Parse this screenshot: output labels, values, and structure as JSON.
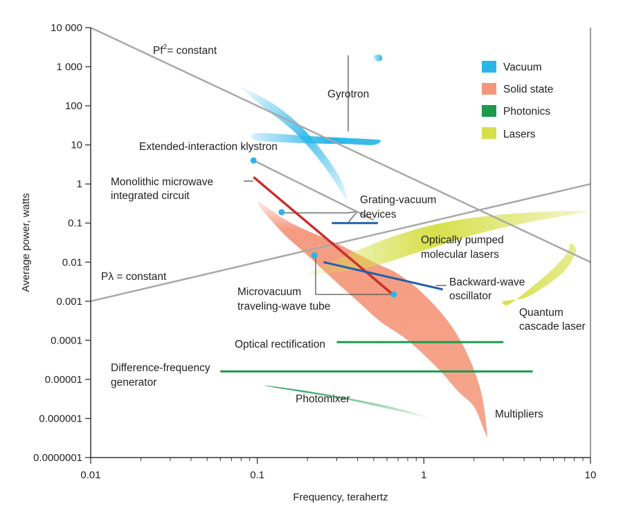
{
  "chart_data": {
    "type": "scatter",
    "title": "",
    "xlabel": "Frequency, terahertz",
    "ylabel": "Average power, watts",
    "xscale": "log",
    "yscale": "log",
    "xlim": [
      0.01,
      10
    ],
    "ylim": [
      1e-07,
      10000
    ],
    "x_ticks": [
      {
        "value": 0.01,
        "label": "0.01"
      },
      {
        "value": 0.1,
        "label": "0.1"
      },
      {
        "value": 1,
        "label": "1"
      },
      {
        "value": 10,
        "label": "10"
      }
    ],
    "y_ticks": [
      {
        "value": 10000,
        "label": "10 000"
      },
      {
        "value": 1000,
        "label": "1 000"
      },
      {
        "value": 100,
        "label": "100"
      },
      {
        "value": 10,
        "label": "10"
      },
      {
        "value": 1,
        "label": "1"
      },
      {
        "value": 0.1,
        "label": "0.1"
      },
      {
        "value": 0.01,
        "label": "0.01"
      },
      {
        "value": 0.001,
        "label": "0.001"
      },
      {
        "value": 0.0001,
        "label": "0.0001"
      },
      {
        "value": 1e-05,
        "label": "0.00001"
      },
      {
        "value": 1e-06,
        "label": "0.000001"
      },
      {
        "value": 1e-07,
        "label": "0.0000001"
      }
    ],
    "legend": {
      "placement": "top-right",
      "items": [
        {
          "label": "Vacuum",
          "color": "#29b6e8"
        },
        {
          "label": "Solid state",
          "color": "#f4967a"
        },
        {
          "label": "Photonics",
          "color": "#1a9a4a"
        },
        {
          "label": "Lasers",
          "color": "#d6e04a"
        }
      ]
    },
    "reference_lines": [
      {
        "name": "pf2",
        "label_main": "Pf",
        "label_sup": "2",
        "label_rest": "= constant",
        "points": [
          [
            0.01,
            10000
          ],
          [
            10,
            0.01
          ]
        ],
        "color": "#a8a8a8"
      },
      {
        "name": "plambda",
        "label": "Pλ = constant",
        "points": [
          [
            0.01,
            0.001
          ],
          [
            10,
            1
          ]
        ],
        "color": "#a8a8a8"
      }
    ],
    "regions": [
      {
        "name": "solid-state",
        "category": "Solid state",
        "color": "#f4967a",
        "points": [
          [
            0.1,
            0.35
          ],
          [
            0.16,
            0.1
          ],
          [
            0.3,
            0.03
          ],
          [
            0.5,
            0.01
          ],
          [
            0.7,
            0.005
          ],
          [
            1,
            0.0015
          ],
          [
            1.4,
            0.0003
          ],
          [
            1.8,
            5e-05
          ],
          [
            2.2,
            5e-06
          ],
          [
            2.4,
            4e-07
          ],
          [
            2.3,
            5e-07
          ],
          [
            2.0,
            2e-06
          ],
          [
            1.6,
            5e-06
          ],
          [
            1.2,
            2e-05
          ],
          [
            0.8,
            0.0001
          ],
          [
            0.55,
            0.0003
          ],
          [
            0.4,
            0.001
          ],
          [
            0.3,
            0.003
          ],
          [
            0.2,
            0.015
          ],
          [
            0.14,
            0.06
          ]
        ]
      },
      {
        "name": "gyrotron",
        "category": "Vacuum",
        "color": "#29b6e8",
        "points": [
          [
            0.1,
            20
          ],
          [
            0.2,
            17
          ],
          [
            0.35,
            15
          ],
          [
            0.48,
            14
          ],
          [
            0.55,
            13
          ],
          [
            0.5,
            10
          ],
          [
            0.35,
            10.5
          ],
          [
            0.2,
            11
          ],
          [
            0.1,
            13
          ]
        ]
      },
      {
        "name": "gyrotron-top",
        "category": "Vacuum",
        "color": "#29b6e8",
        "points": [
          [
            0.5,
            1900
          ],
          [
            0.55,
            2000
          ],
          [
            0.56,
            1500
          ],
          [
            0.52,
            1400
          ]
        ]
      },
      {
        "name": "klystron-plume",
        "category": "Vacuum",
        "color": "#29b6e8",
        "points": [
          [
            0.08,
            300
          ],
          [
            0.13,
            100
          ],
          [
            0.2,
            20
          ],
          [
            0.3,
            2
          ],
          [
            0.35,
            0.4
          ],
          [
            0.33,
            0.5
          ],
          [
            0.25,
            3
          ],
          [
            0.17,
            20
          ],
          [
            0.11,
            90
          ]
        ]
      },
      {
        "name": "optically-pumped",
        "category": "Lasers",
        "color": "#d6e04a",
        "points": [
          [
            0.2,
            0.005
          ],
          [
            0.4,
            0.02
          ],
          [
            0.8,
            0.06
          ],
          [
            1.6,
            0.12
          ],
          [
            3.2,
            0.17
          ],
          [
            6,
            0.2
          ],
          [
            9.5,
            0.2
          ],
          [
            8,
            0.17
          ],
          [
            4,
            0.1
          ],
          [
            2,
            0.05
          ],
          [
            1,
            0.02
          ],
          [
            0.5,
            0.008
          ],
          [
            0.25,
            0.005
          ]
        ]
      },
      {
        "name": "quantum-cascade",
        "category": "Lasers",
        "color": "#d6e04a",
        "points": [
          [
            3,
            0.001
          ],
          [
            4,
            0.0012
          ],
          [
            5,
            0.002
          ],
          [
            6.3,
            0.004
          ],
          [
            7.4,
            0.008
          ],
          [
            8.2,
            0.02
          ],
          [
            7.6,
            0.03
          ],
          [
            7.3,
            0.018
          ],
          [
            6.2,
            0.008
          ],
          [
            5,
            0.0035
          ],
          [
            4,
            0.0016
          ],
          [
            3.2,
            0.0008
          ]
        ]
      },
      {
        "name": "photomixer",
        "category": "Photonics",
        "color": "#1a9a4a",
        "points": [
          [
            0.11,
            7e-06
          ],
          [
            0.2,
            5e-06
          ],
          [
            0.4,
            3e-06
          ],
          [
            0.7,
            1.8e-06
          ],
          [
            1.1,
            1e-06
          ],
          [
            1.3,
            8e-07
          ],
          [
            1.0,
            1.1e-06
          ],
          [
            0.6,
            1.8e-06
          ],
          [
            0.35,
            3e-06
          ],
          [
            0.2,
            4.5e-06
          ]
        ]
      }
    ],
    "series": [
      {
        "name": "Extended-interaction klystron",
        "category": "Vacuum",
        "color": "#a8a8a8",
        "points": [
          [
            0.095,
            4
          ],
          [
            0.5,
            0.12
          ]
        ]
      },
      {
        "name": "Grating-vacuum devices",
        "category": "Vacuum",
        "color": "#2060ac",
        "points": [
          [
            0.28,
            0.1
          ],
          [
            0.53,
            0.1
          ]
        ]
      },
      {
        "name": "Monolithic microwave integrated circuit",
        "category": "Solid state",
        "color": "#c8302a",
        "points": [
          [
            0.095,
            1.5
          ],
          [
            0.65,
            0.0015
          ]
        ]
      },
      {
        "name": "Backward-wave oscillator",
        "category": "Vacuum",
        "color": "#2060ac",
        "points": [
          [
            0.25,
            0.01
          ],
          [
            1.3,
            0.002
          ]
        ]
      },
      {
        "name": "Optical rectification",
        "category": "Photonics",
        "color": "#1a9a4a",
        "points": [
          [
            0.3,
            9e-05
          ],
          [
            3,
            9e-05
          ]
        ]
      },
      {
        "name": "Difference-frequency generator",
        "category": "Photonics",
        "color": "#1a9a4a",
        "points": [
          [
            0.06,
            1.6e-05
          ],
          [
            4.5,
            1.6e-05
          ]
        ]
      }
    ],
    "points": [
      {
        "name": "klystron-point",
        "x": 0.095,
        "y": 4,
        "color": "#29b6e8"
      },
      {
        "name": "grating-vacuum-point",
        "x": 0.14,
        "y": 0.19,
        "color": "#29b6e8"
      },
      {
        "name": "microvacuum-point-1",
        "x": 0.22,
        "y": 0.015,
        "color": "#29b6e8"
      },
      {
        "name": "microvacuum-point-2",
        "x": 0.66,
        "y": 0.0015,
        "color": "#29b6e8"
      }
    ],
    "annotations": [
      {
        "name": "gyrotron-label",
        "lines": [
          "Gyrotron"
        ]
      },
      {
        "name": "klystron-label",
        "lines": [
          "Extended-interaction klystron"
        ]
      },
      {
        "name": "mmic-label",
        "lines": [
          "Monolithic microwave",
          "integrated circuit"
        ]
      },
      {
        "name": "grating-label",
        "lines": [
          "Grating-vacuum",
          "devices"
        ]
      },
      {
        "name": "optically-pumped-label",
        "lines": [
          "Optically pumped",
          "molecular lasers"
        ]
      },
      {
        "name": "microvacuum-label",
        "lines": [
          "Microvacuum",
          "traveling-wave tube"
        ]
      },
      {
        "name": "bwo-label",
        "lines": [
          "Backward-wave",
          "oscillator"
        ]
      },
      {
        "name": "quantum-cascade-label",
        "lines": [
          "Quantum",
          "cascade laser"
        ]
      },
      {
        "name": "optical-rectification-label",
        "lines": [
          "Optical rectification"
        ]
      },
      {
        "name": "dfg-label",
        "lines": [
          "Difference-frequency",
          "generator"
        ]
      },
      {
        "name": "photomixer-label",
        "lines": [
          "Photomixer"
        ]
      },
      {
        "name": "multipliers-label",
        "lines": [
          "Multipliers"
        ]
      }
    ]
  }
}
